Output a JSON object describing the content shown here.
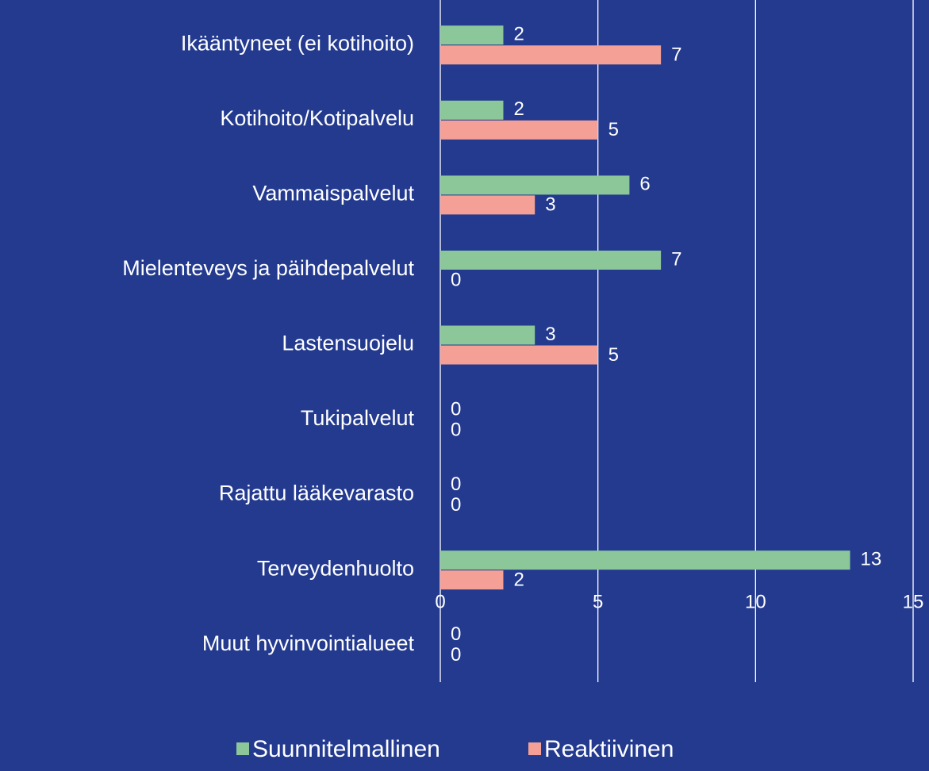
{
  "chart_data": {
    "type": "bar",
    "orientation": "horizontal",
    "categories": [
      "Ikääntyneet (ei kotihoito)",
      "Kotihoito/Kotipalvelu",
      "Vammaispalvelut",
      "Mielenteveys ja päihdepalvelut",
      "Lastensuojelu",
      "Tukipalvelut",
      "Rajattu lääkevarasto",
      "Terveydenhuolto",
      "Muut hyvinvointialueet"
    ],
    "series": [
      {
        "name": "Suunnitelmallinen",
        "color": "#8cc79a",
        "values": [
          2,
          2,
          6,
          7,
          3,
          0,
          0,
          13,
          0
        ]
      },
      {
        "name": "Reaktiivinen",
        "color": "#f4a096",
        "values": [
          7,
          5,
          3,
          0,
          5,
          0,
          0,
          2,
          0
        ]
      }
    ],
    "xlim": [
      0,
      15
    ],
    "xticks": [
      0,
      5,
      10,
      15
    ],
    "grid": true,
    "legend": "bottom"
  }
}
